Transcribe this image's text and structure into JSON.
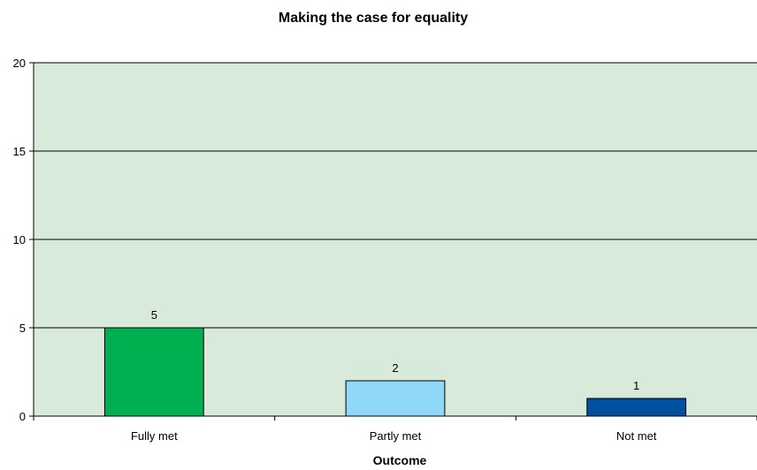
{
  "chart_data": {
    "type": "bar",
    "title": "Making the case for equality",
    "xlabel": "Outcome",
    "ylabel": "",
    "categories": [
      "Fully met",
      "Partly met",
      "Not met"
    ],
    "values": [
      5,
      2,
      1
    ],
    "data_labels": [
      "5",
      "2",
      "1"
    ],
    "ylim": [
      0,
      20
    ],
    "yticks": [
      0,
      5,
      10,
      15,
      20
    ],
    "grid": true,
    "legend": "none",
    "bar_colors": [
      "#00B050",
      "#8FD8F8",
      "#0050A0"
    ],
    "plot_background": "#D8EAD9",
    "gridline_color": "#000000",
    "bar_border_color": "#000000"
  }
}
